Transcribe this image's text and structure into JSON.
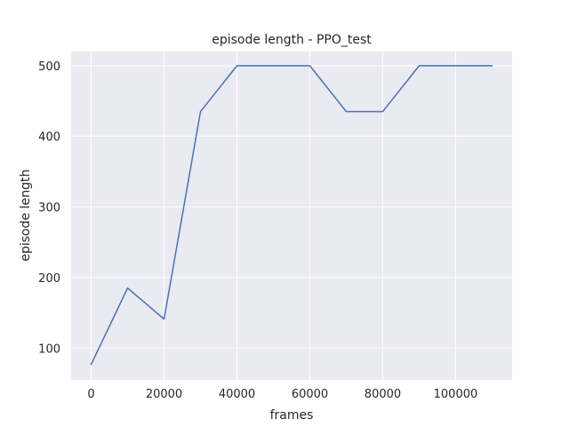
{
  "chart_data": {
    "type": "line",
    "title": "episode length - PPO_test",
    "xlabel": "frames",
    "ylabel": "episode length",
    "xlim": [
      -5500,
      115500
    ],
    "ylim": [
      55,
      520
    ],
    "xticks": [
      0,
      20000,
      40000,
      60000,
      80000,
      100000
    ],
    "yticks": [
      100,
      200,
      300,
      400,
      500
    ],
    "grid": true,
    "legend": "none",
    "colors": {
      "background": "#eaeaf2",
      "grid": "#ffffff",
      "line": "#4c72b0"
    },
    "series": [
      {
        "x": [
          0,
          10000,
          20000,
          30000,
          40000,
          50000,
          60000,
          70000,
          80000,
          90000,
          100000,
          110000
        ],
        "y": [
          77,
          185,
          141,
          435,
          500,
          500,
          500,
          435,
          435,
          500,
          500,
          500
        ]
      }
    ]
  }
}
